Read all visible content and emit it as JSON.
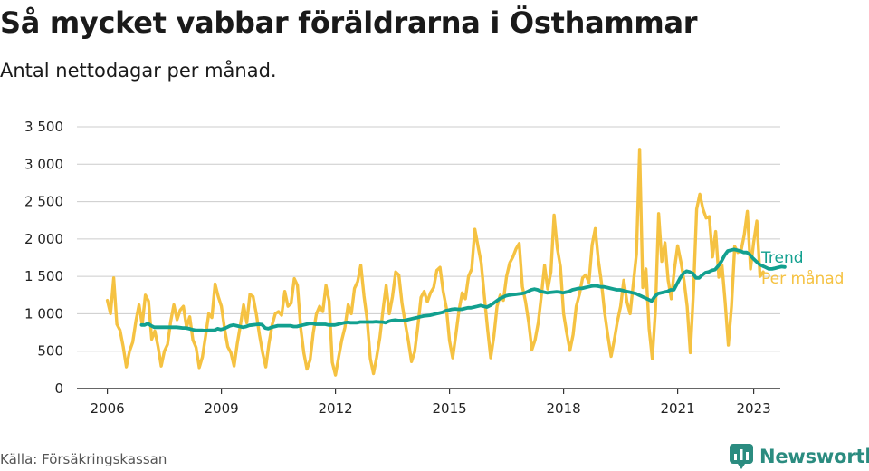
{
  "header": {
    "title": "Så mycket vabbar föräldrarna i Östhammar",
    "subtitle": "Antal nettodagar per månad."
  },
  "footer": {
    "source": "Källa: Försäkringskassan",
    "brand": "Newsworthy",
    "brand_icon": "bar-chart-logo-icon"
  },
  "colors": {
    "monthly": "#f5c242",
    "trend": "#12a08f",
    "axis": "#333333",
    "grid": "#cccccc",
    "brand": "#2b8c80"
  },
  "chart_data": {
    "type": "line",
    "title": "Så mycket vabbar föräldrarna i Östhammar",
    "subtitle": "Antal nettodagar per månad.",
    "xlabel": "",
    "ylabel": "",
    "ylim": [
      0,
      3500
    ],
    "xlim": [
      2005.2,
      2023.7
    ],
    "y_ticks": [
      0,
      500,
      1000,
      1500,
      2000,
      2500,
      3000,
      3500
    ],
    "y_tick_labels": [
      "0",
      "500",
      "1 000",
      "1 500",
      "2 000",
      "2 500",
      "3 000",
      "3 500"
    ],
    "x_ticks": [
      2006,
      2009,
      2012,
      2015,
      2018,
      2021,
      2023
    ],
    "x_tick_labels": [
      "2006",
      "2009",
      "2012",
      "2015",
      "2018",
      "2021",
      "2023"
    ],
    "grid": "horizontal",
    "series": [
      {
        "name": "Per månad",
        "start": 2006.0,
        "step": 0.08333,
        "values": [
          1180,
          1000,
          1480,
          860,
          780,
          560,
          290,
          500,
          620,
          900,
          1120,
          850,
          1250,
          1170,
          660,
          770,
          560,
          300,
          500,
          590,
          900,
          1120,
          920,
          1050,
          1100,
          820,
          960,
          650,
          550,
          280,
          420,
          700,
          1000,
          950,
          1400,
          1230,
          1100,
          800,
          560,
          480,
          300,
          600,
          850,
          1120,
          880,
          1260,
          1230,
          1000,
          720,
          480,
          290,
          600,
          850,
          1000,
          1030,
          980,
          1300,
          1100,
          1140,
          1470,
          1380,
          820,
          480,
          260,
          380,
          750,
          1000,
          1100,
          1030,
          1380,
          1170,
          350,
          180,
          420,
          650,
          820,
          1120,
          1000,
          1340,
          1430,
          1650,
          1240,
          920,
          400,
          200,
          420,
          680,
          1050,
          1380,
          1000,
          1230,
          1560,
          1520,
          1140,
          880,
          640,
          360,
          490,
          830,
          1220,
          1300,
          1160,
          1280,
          1350,
          1580,
          1620,
          1300,
          1080,
          640,
          410,
          720,
          1050,
          1280,
          1200,
          1500,
          1600,
          2130,
          1900,
          1680,
          1230,
          800,
          410,
          700,
          1100,
          1250,
          1180,
          1500,
          1680,
          1760,
          1870,
          1940,
          1360,
          1160,
          880,
          520,
          650,
          880,
          1250,
          1650,
          1330,
          1560,
          2320,
          1880,
          1630,
          1000,
          740,
          510,
          720,
          1100,
          1260,
          1480,
          1520,
          1420,
          1920,
          2140,
          1710,
          1400,
          1000,
          700,
          430,
          650,
          900,
          1100,
          1450,
          1160,
          1000,
          1400,
          1800,
          3200,
          1350,
          1600,
          800,
          400,
          1050,
          2340,
          1700,
          1950,
          1450,
          1200,
          1600,
          1910,
          1700,
          1450,
          1100,
          480,
          1300,
          2400,
          2600,
          2400,
          2280,
          2300,
          1760,
          2100,
          1490,
          1650,
          1150,
          580,
          1100,
          1900,
          1820,
          1840,
          2050,
          2370,
          1600,
          1960,
          2240,
          1500,
          1560
        ]
      },
      {
        "name": "Trend",
        "start": 2006.9,
        "step": 0.08333,
        "values": [
          850,
          850,
          870,
          840,
          820,
          820,
          820,
          820,
          820,
          820,
          820,
          820,
          815,
          810,
          810,
          800,
          790,
          780,
          780,
          780,
          775,
          780,
          780,
          780,
          800,
          790,
          800,
          820,
          840,
          850,
          840,
          830,
          820,
          830,
          845,
          850,
          855,
          860,
          855,
          810,
          800,
          820,
          830,
          840,
          840,
          840,
          840,
          840,
          830,
          830,
          840,
          850,
          860,
          870,
          870,
          860,
          860,
          860,
          860,
          850,
          850,
          850,
          860,
          870,
          880,
          885,
          880,
          880,
          880,
          890,
          890,
          890,
          890,
          890,
          895,
          890,
          890,
          880,
          900,
          910,
          915,
          910,
          910,
          910,
          920,
          930,
          940,
          950,
          960,
          970,
          975,
          980,
          990,
          1000,
          1010,
          1020,
          1040,
          1050,
          1060,
          1065,
          1060,
          1060,
          1070,
          1080,
          1080,
          1090,
          1100,
          1110,
          1100,
          1090,
          1110,
          1140,
          1170,
          1200,
          1220,
          1240,
          1250,
          1255,
          1260,
          1265,
          1270,
          1280,
          1300,
          1320,
          1330,
          1320,
          1300,
          1290,
          1280,
          1285,
          1290,
          1295,
          1290,
          1280,
          1290,
          1300,
          1320,
          1330,
          1340,
          1340,
          1350,
          1360,
          1370,
          1375,
          1370,
          1360,
          1360,
          1350,
          1340,
          1330,
          1320,
          1320,
          1310,
          1300,
          1290,
          1280,
          1270,
          1250,
          1230,
          1210,
          1190,
          1170,
          1230,
          1270,
          1280,
          1290,
          1300,
          1320,
          1320,
          1400,
          1480,
          1540,
          1570,
          1560,
          1540,
          1480,
          1480,
          1520,
          1550,
          1560,
          1580,
          1590,
          1640,
          1700,
          1780,
          1840,
          1850,
          1860,
          1850,
          1840,
          1820,
          1820,
          1790,
          1740,
          1700,
          1660,
          1640,
          1620,
          1600,
          1600,
          1610,
          1620,
          1630,
          1625
        ]
      }
    ],
    "legend": [
      {
        "name": "Trend",
        "position": "right-end"
      },
      {
        "name": "Per månad",
        "position": "right-end"
      }
    ]
  }
}
